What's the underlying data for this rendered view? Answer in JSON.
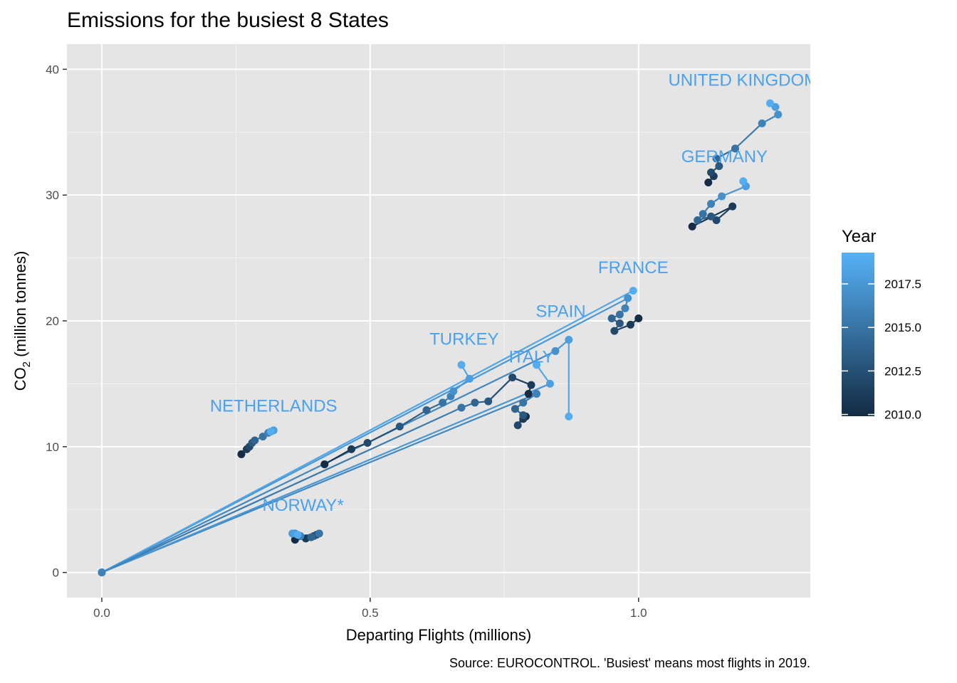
{
  "title": "Emissions for the busiest 8 States",
  "source": "Source: EUROCONTROL. 'Busiest' means most flights in 2019.",
  "chart_data": {
    "type": "line",
    "title": "Emissions for the busiest 8 States",
    "xlabel": "Departing Flights (millions)",
    "ylabel": "CO₂ (million tonnes)",
    "ylabel_main": "CO",
    "ylabel_sub": "2",
    "ylabel_rest": " (million tonnes)",
    "xlim": [
      -0.065,
      1.32
    ],
    "ylim": [
      -2,
      42
    ],
    "xticks": [
      0.0,
      0.5,
      1.0
    ],
    "xtick_labels": [
      "0.0",
      "0.5",
      "1.0"
    ],
    "yticks": [
      0,
      10,
      20,
      30,
      40
    ],
    "ytick_labels": [
      "0",
      "10",
      "20",
      "30",
      "40"
    ],
    "grid": true,
    "legend": {
      "title": "Year",
      "position": "right",
      "min": 2009.9,
      "max": 2019.3,
      "ticks": [
        2010.0,
        2012.5,
        2015.0,
        2017.5
      ],
      "tick_labels": [
        "2010.0",
        "2012.5",
        "2015.0",
        "2017.5"
      ],
      "color_low": "#132b43",
      "color_high": "#56b1f7"
    },
    "series": [
      {
        "name": "UNITED KINGDOM",
        "label": "UNITED KINGDOM",
        "label_pos": [
          1.195,
          38.7
        ],
        "points": [
          [
            1.13,
            31.0,
            2010
          ],
          [
            1.14,
            31.5,
            2011
          ],
          [
            1.135,
            31.8,
            2012
          ],
          [
            1.15,
            32.3,
            2013
          ],
          [
            1.145,
            32.9,
            2014
          ],
          [
            1.18,
            33.7,
            2015
          ],
          [
            1.23,
            35.7,
            2016
          ],
          [
            1.26,
            36.4,
            2017
          ],
          [
            1.255,
            37.0,
            2018
          ],
          [
            1.245,
            37.3,
            2019
          ]
        ]
      },
      {
        "name": "GERMANY",
        "label": "GERMANY",
        "label_pos": [
          1.16,
          32.6
        ],
        "points": [
          [
            1.1,
            27.5,
            2010
          ],
          [
            1.175,
            29.1,
            2011
          ],
          [
            1.145,
            28.0,
            2012
          ],
          [
            1.135,
            28.3,
            2013
          ],
          [
            1.11,
            28.0,
            2014
          ],
          [
            1.12,
            28.5,
            2015
          ],
          [
            1.135,
            29.3,
            2016
          ],
          [
            1.155,
            29.9,
            2017
          ],
          [
            1.2,
            30.7,
            2018
          ],
          [
            1.195,
            31.1,
            2019
          ]
        ]
      },
      {
        "name": "FRANCE",
        "label": "FRANCE",
        "label_pos": [
          0.99,
          23.8
        ],
        "points": [
          [
            0,
            0,
            2018
          ],
          [
            1.0,
            20.2,
            2010
          ],
          [
            0.985,
            19.7,
            2011
          ],
          [
            0.955,
            19.2,
            2012
          ],
          [
            0.965,
            19.8,
            2013
          ],
          [
            0.95,
            20.2,
            2014
          ],
          [
            0.965,
            20.5,
            2015
          ],
          [
            0.975,
            21.0,
            2016
          ],
          [
            0.98,
            21.8,
            2017
          ],
          [
            0.99,
            22.4,
            2019
          ]
        ]
      },
      {
        "name": "SPAIN",
        "label": "SPAIN",
        "label_pos": [
          0.855,
          20.3
        ],
        "points": [
          [
            0,
            0,
            2017
          ],
          [
            0.79,
            12.4,
            2010
          ],
          [
            0.785,
            12.2,
            2011
          ],
          [
            0.775,
            11.7,
            2012
          ],
          [
            0.785,
            12.5,
            2013
          ],
          [
            0.77,
            13.0,
            2014
          ],
          [
            0.785,
            13.5,
            2015
          ],
          [
            0.81,
            14.2,
            2016
          ],
          [
            0.835,
            15.0,
            2018
          ],
          [
            0.81,
            16.5,
            2019
          ]
        ]
      },
      {
        "name": "ITALY",
        "label": "ITALY",
        "label_pos": [
          0.8,
          16.7
        ],
        "points": [
          [
            0,
            0,
            2016
          ],
          [
            0.795,
            14.2,
            2010
          ],
          [
            0.8,
            14.9,
            2011
          ],
          [
            0.765,
            15.5,
            2012
          ],
          [
            0.72,
            13.6,
            2013
          ],
          [
            0.695,
            13.5,
            2014
          ],
          [
            0.67,
            13.1,
            2015
          ],
          [
            0.845,
            17.6,
            2017
          ],
          [
            0.87,
            18.5,
            2018
          ],
          [
            0.87,
            12.4,
            2019
          ]
        ]
      },
      {
        "name": "TURKEY",
        "label": "TURKEY",
        "label_pos": [
          0.675,
          18.1
        ],
        "points": [
          [
            0.415,
            8.6,
            2010
          ],
          [
            0.465,
            9.8,
            2011
          ],
          [
            0.495,
            10.3,
            2012
          ],
          [
            0.555,
            11.6,
            2013
          ],
          [
            0.605,
            12.9,
            2014
          ],
          [
            0.635,
            13.5,
            2015
          ],
          [
            0.65,
            14.0,
            2016
          ],
          [
            0.655,
            14.4,
            2017
          ],
          [
            0.685,
            15.4,
            2018
          ],
          [
            0.67,
            16.5,
            2019
          ]
        ]
      },
      {
        "name": "NETHERLANDS",
        "label": "NETHERLANDS",
        "label_pos": [
          0.32,
          12.8
        ],
        "points": [
          [
            0.26,
            9.4,
            2010
          ],
          [
            0.27,
            9.8,
            2011
          ],
          [
            0.275,
            10.0,
            2012
          ],
          [
            0.28,
            10.3,
            2013
          ],
          [
            0.285,
            10.5,
            2014
          ],
          [
            0.3,
            10.8,
            2015
          ],
          [
            0.31,
            11.1,
            2016
          ],
          [
            0.315,
            11.2,
            2017
          ],
          [
            0.32,
            11.3,
            2018
          ],
          [
            0.315,
            11.2,
            2019
          ]
        ]
      },
      {
        "name": "NORWAY*",
        "label": "NORWAY*",
        "label_pos": [
          0.375,
          4.9
        ],
        "points": [
          [
            0.36,
            2.6,
            2010
          ],
          [
            0.38,
            2.7,
            2011
          ],
          [
            0.4,
            3.0,
            2012
          ],
          [
            0.395,
            2.9,
            2013
          ],
          [
            0.39,
            2.8,
            2014
          ],
          [
            0.405,
            3.1,
            2015
          ],
          [
            0.37,
            2.9,
            2016
          ],
          [
            0.36,
            3.1,
            2017
          ],
          [
            0.355,
            3.1,
            2018
          ],
          [
            0.365,
            3.0,
            2019
          ]
        ]
      }
    ]
  }
}
